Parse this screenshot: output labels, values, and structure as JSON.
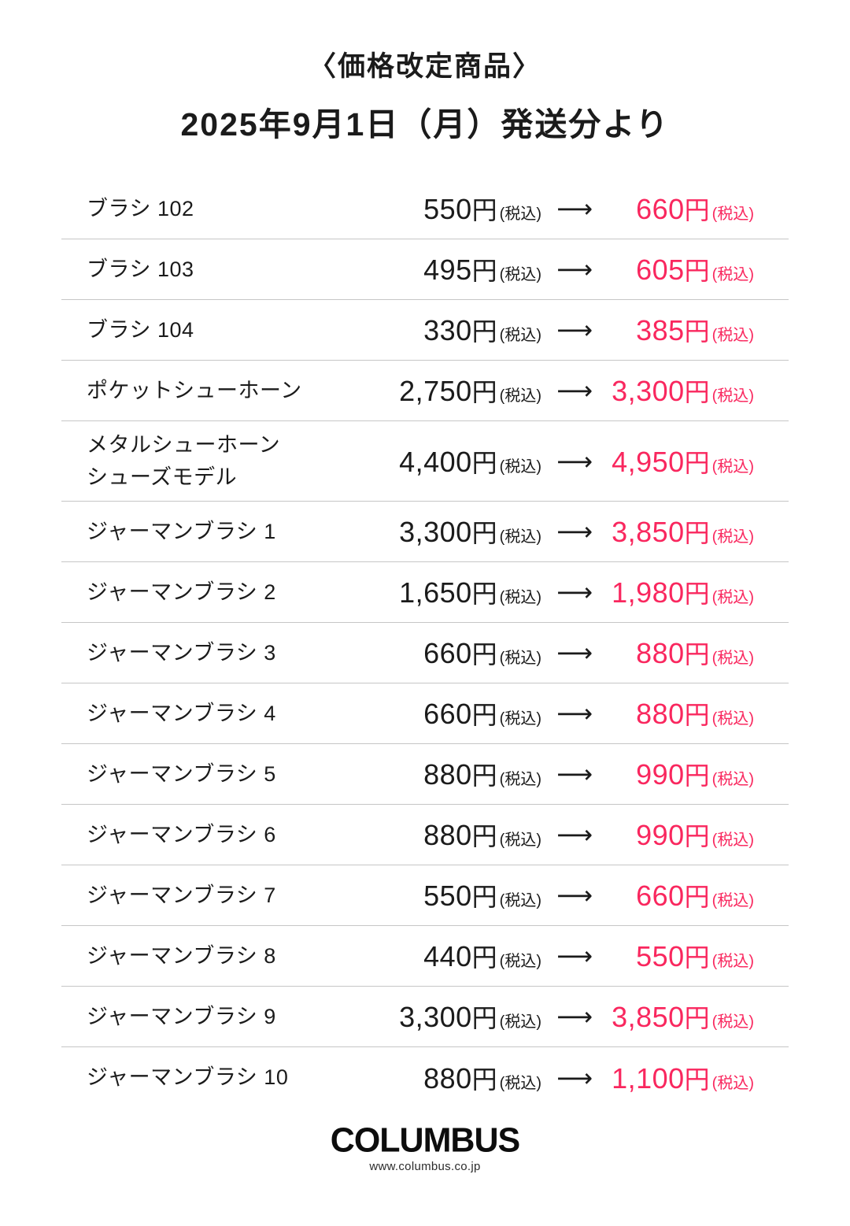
{
  "header": {
    "title": "〈価格改定商品〉",
    "subtitle": "2025年9月1日（月）発送分より"
  },
  "table": {
    "yen_label": "円",
    "tax_label": "(税込)",
    "arrow_glyph": "⟶",
    "rows": [
      {
        "name": "ブラシ 102",
        "old_price": "550",
        "new_price": "660"
      },
      {
        "name": "ブラシ 103",
        "old_price": "495",
        "new_price": "605"
      },
      {
        "name": "ブラシ 104",
        "old_price": "330",
        "new_price": "385"
      },
      {
        "name": "ポケットシューホーン",
        "old_price": "2,750",
        "new_price": "3,300"
      },
      {
        "name": "メタルシューホーン\nシューズモデル",
        "old_price": "4,400",
        "new_price": "4,950"
      },
      {
        "name": "ジャーマンブラシ 1",
        "old_price": "3,300",
        "new_price": "3,850"
      },
      {
        "name": "ジャーマンブラシ 2",
        "old_price": "1,650",
        "new_price": "1,980"
      },
      {
        "name": "ジャーマンブラシ 3",
        "old_price": "660",
        "new_price": "880"
      },
      {
        "name": "ジャーマンブラシ 4",
        "old_price": "660",
        "new_price": "880"
      },
      {
        "name": "ジャーマンブラシ 5",
        "old_price": "880",
        "new_price": "990"
      },
      {
        "name": "ジャーマンブラシ 6",
        "old_price": "880",
        "new_price": "990"
      },
      {
        "name": "ジャーマンブラシ 7",
        "old_price": "550",
        "new_price": "660"
      },
      {
        "name": "ジャーマンブラシ 8",
        "old_price": "440",
        "new_price": "550"
      },
      {
        "name": "ジャーマンブラシ 9",
        "old_price": "3,300",
        "new_price": "3,850"
      },
      {
        "name": "ジャーマンブラシ 10",
        "old_price": "880",
        "new_price": "1,100"
      }
    ]
  },
  "footer": {
    "logo": "COLUMBUS",
    "url": "www.columbus.co.jp"
  },
  "colors": {
    "new_price_pink": "#f9275e",
    "text": "#1b1b1b",
    "divider": "#c6c6c6"
  }
}
